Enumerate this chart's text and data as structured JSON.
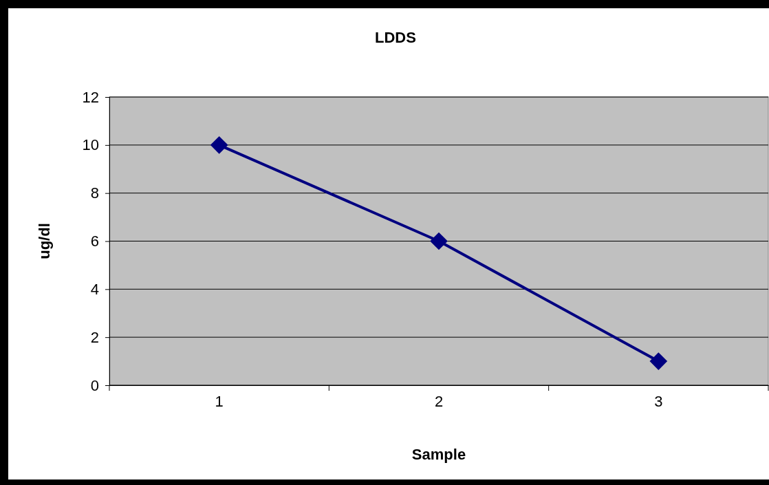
{
  "chart_data": {
    "type": "line",
    "title": "LDDS",
    "xlabel": "Sample",
    "ylabel": "ug/dl",
    "categories": [
      "1",
      "2",
      "3"
    ],
    "series": [
      {
        "color": "#000080",
        "values": [
          10,
          6,
          1
        ]
      }
    ],
    "ylim": [
      0,
      12
    ],
    "yticks": [
      0,
      2,
      4,
      6,
      8,
      10,
      12
    ],
    "grid": "y",
    "marker": "diamond",
    "line_style": "solid"
  }
}
